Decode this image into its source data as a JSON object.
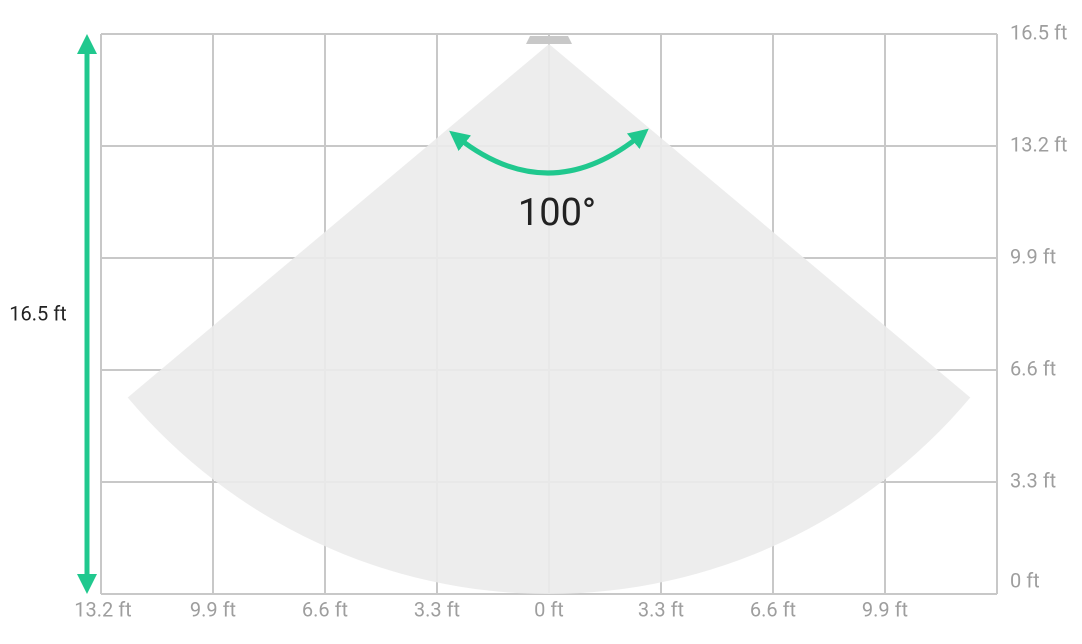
{
  "diagram": {
    "angle_label": "100°",
    "range_label": "16.5 ft",
    "x_labels": [
      "13.2 ft",
      "9.9 ft",
      "6.6 ft",
      "3.3 ft",
      "0 ft",
      "3.3 ft",
      "6.6 ft",
      "9.9 ft"
    ],
    "y_labels": [
      "16.5 ft",
      "13.2 ft",
      "9.9 ft",
      "6.6 ft",
      "3.3 ft",
      "0 ft"
    ]
  }
}
